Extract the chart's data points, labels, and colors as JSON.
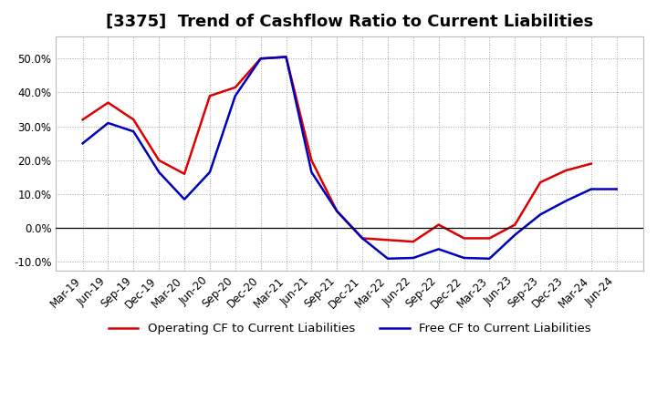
{
  "title": "[3375]  Trend of Cashflow Ratio to Current Liabilities",
  "x_labels": [
    "Mar-19",
    "Jun-19",
    "Sep-19",
    "Dec-19",
    "Mar-20",
    "Jun-20",
    "Sep-20",
    "Dec-20",
    "Mar-21",
    "Jun-21",
    "Sep-21",
    "Dec-21",
    "Mar-22",
    "Jun-22",
    "Sep-22",
    "Dec-22",
    "Mar-23",
    "Jun-23",
    "Sep-23",
    "Dec-23",
    "Mar-24",
    "Jun-24"
  ],
  "op_cf": [
    0.32,
    0.37,
    0.32,
    0.2,
    0.16,
    0.39,
    0.415,
    0.5,
    0.505,
    0.2,
    0.05,
    -0.03,
    -0.035,
    -0.04,
    0.01,
    -0.03,
    -0.03,
    0.01,
    0.135,
    0.17,
    0.19,
    null
  ],
  "free_cf": [
    0.25,
    0.31,
    0.285,
    0.165,
    0.085,
    0.165,
    0.39,
    0.5,
    0.505,
    0.165,
    0.05,
    -0.03,
    -0.09,
    -0.088,
    -0.062,
    -0.088,
    -0.09,
    -0.02,
    0.04,
    0.08,
    0.115,
    0.115
  ],
  "operating_color": "#dd0000",
  "free_color": "#0000bb",
  "background_color": "#ffffff",
  "plot_bg_color": "#ffffff",
  "grid_color": "#999999",
  "ylim": [
    -0.125,
    0.565
  ],
  "yticks": [
    -0.1,
    0.0,
    0.1,
    0.2,
    0.3,
    0.4,
    0.5
  ],
  "legend_op": "Operating CF to Current Liabilities",
  "legend_free": "Free CF to Current Liabilities",
  "title_fontsize": 13,
  "axis_fontsize": 8.5
}
